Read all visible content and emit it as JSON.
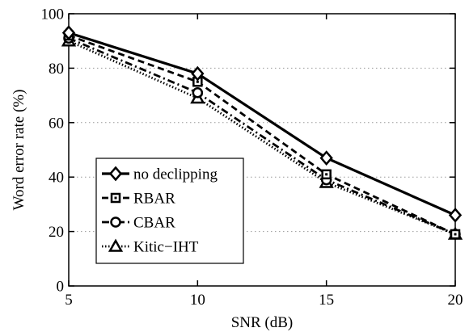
{
  "chart_data": {
    "type": "line",
    "title": "",
    "xlabel": "SNR (dB)",
    "ylabel": "Word error rate (%)",
    "x": [
      5,
      10,
      15,
      20
    ],
    "xlim": [
      5,
      20
    ],
    "ylim": [
      0,
      100
    ],
    "xticks": [
      "5",
      "10",
      "15",
      "20"
    ],
    "yticks": [
      "0",
      "20",
      "40",
      "60",
      "80",
      "100"
    ],
    "grid": "horizontal dotted",
    "legend_position": "bottom-left",
    "series": [
      {
        "name": "no declipping",
        "values": [
          93,
          78,
          47,
          26
        ],
        "marker": "diamond",
        "linestyle": "solid",
        "color": "#000000"
      },
      {
        "name": "RBAR",
        "values": [
          92,
          75,
          41,
          19
        ],
        "marker": "square",
        "linestyle": "dashed",
        "color": "#000000"
      },
      {
        "name": "CBAR",
        "values": [
          91,
          71,
          39,
          19
        ],
        "marker": "circle",
        "linestyle": "dash-dot",
        "color": "#000000"
      },
      {
        "name": "Kitic−IHT",
        "values": [
          90,
          69,
          38,
          19
        ],
        "marker": "triangle",
        "linestyle": "dotted",
        "color": "#000000"
      }
    ]
  }
}
